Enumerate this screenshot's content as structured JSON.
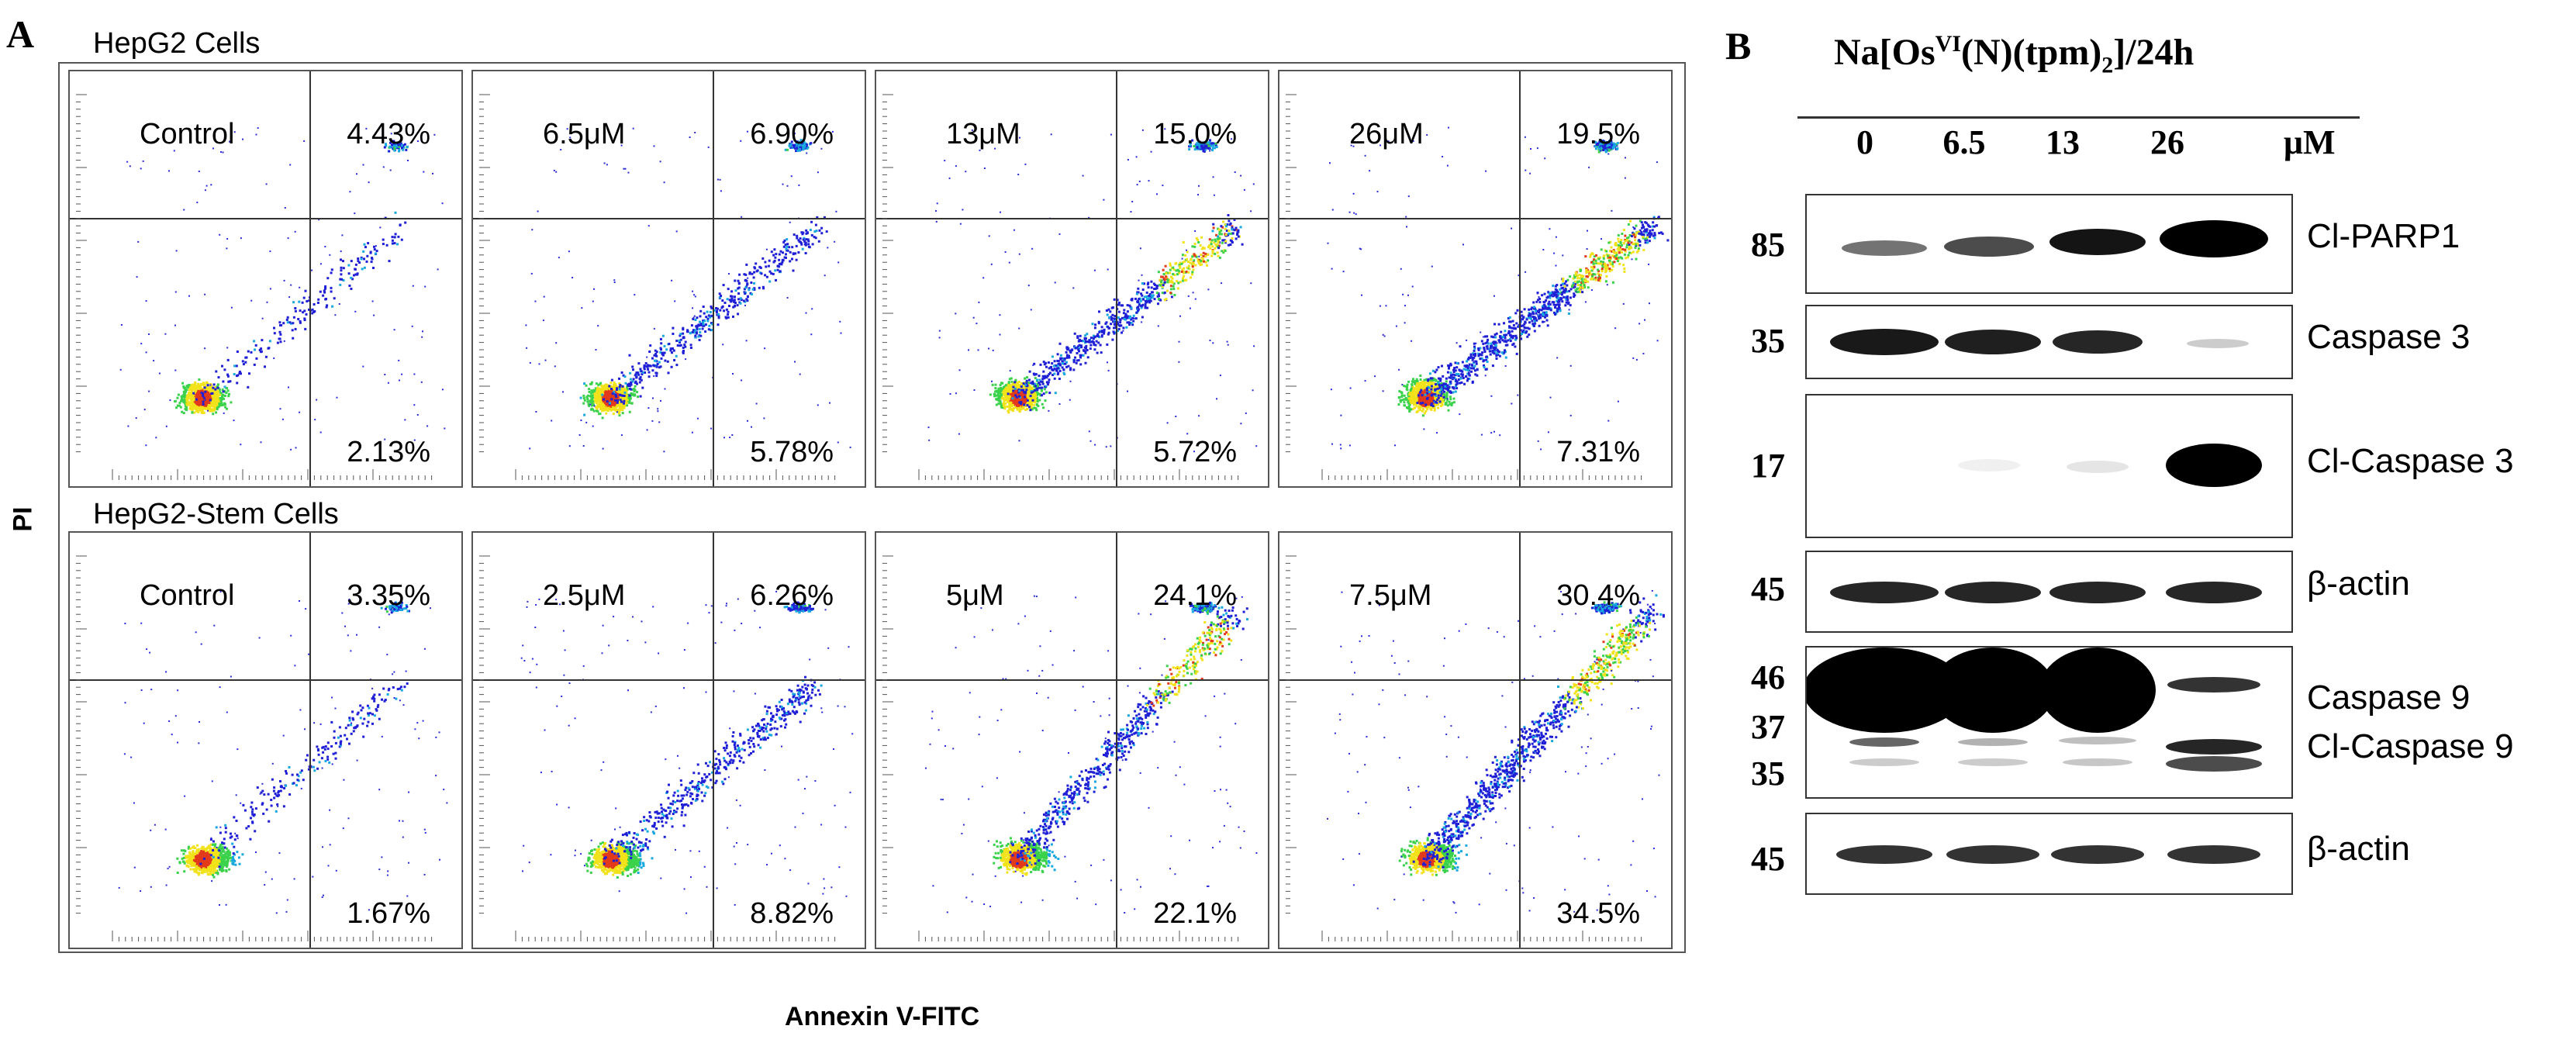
{
  "panel_a": {
    "letter": "A",
    "y_axis_title": "PI",
    "x_axis_title": "Annexin V-FITC",
    "rows": [
      {
        "label": "HepG2 Cells",
        "plots": [
          {
            "condition": "Control",
            "upper_right": "4.43%",
            "lower_right": "2.13%"
          },
          {
            "condition": "6.5μM",
            "upper_right": "6.90%",
            "lower_right": "5.78%"
          },
          {
            "condition": "13μM",
            "upper_right": "15.0%",
            "lower_right": "5.72%"
          },
          {
            "condition": "26μM",
            "upper_right": "19.5%",
            "lower_right": "7.31%"
          }
        ]
      },
      {
        "label": "HepG2-Stem Cells",
        "plots": [
          {
            "condition": "Control",
            "upper_right": "3.35%",
            "lower_right": "1.67%"
          },
          {
            "condition": "2.5μM",
            "upper_right": "6.26%",
            "lower_right": "8.82%"
          },
          {
            "condition": "5μM",
            "upper_right": "24.1%",
            "lower_right": "22.1%"
          },
          {
            "condition": "7.5μM",
            "upper_right": "30.4%",
            "lower_right": "34.5%"
          }
        ]
      }
    ]
  },
  "panel_b": {
    "letter": "B",
    "treatment_prefix": "Na[Os",
    "treatment_sup": "VI",
    "treatment_mid": "(N)(tpm)",
    "treatment_sub": "2",
    "treatment_suffix": "]/24h",
    "lanes": [
      "0",
      "6.5",
      "13",
      "26"
    ],
    "unit": "μM",
    "blots": [
      {
        "mw": [
          "85"
        ],
        "labels": [
          "Cl-PARP1"
        ]
      },
      {
        "mw": [
          "35"
        ],
        "labels": [
          "Caspase 3"
        ]
      },
      {
        "mw": [
          "17"
        ],
        "labels": [
          "Cl-Caspase 3"
        ]
      },
      {
        "mw": [
          "45"
        ],
        "labels": [
          "β-actin"
        ]
      },
      {
        "mw": [
          "46",
          "37",
          "35"
        ],
        "labels": [
          "Caspase 9",
          "Cl-Caspase 9"
        ]
      },
      {
        "mw": [
          "45"
        ],
        "labels": [
          "β-actin"
        ]
      }
    ]
  }
}
